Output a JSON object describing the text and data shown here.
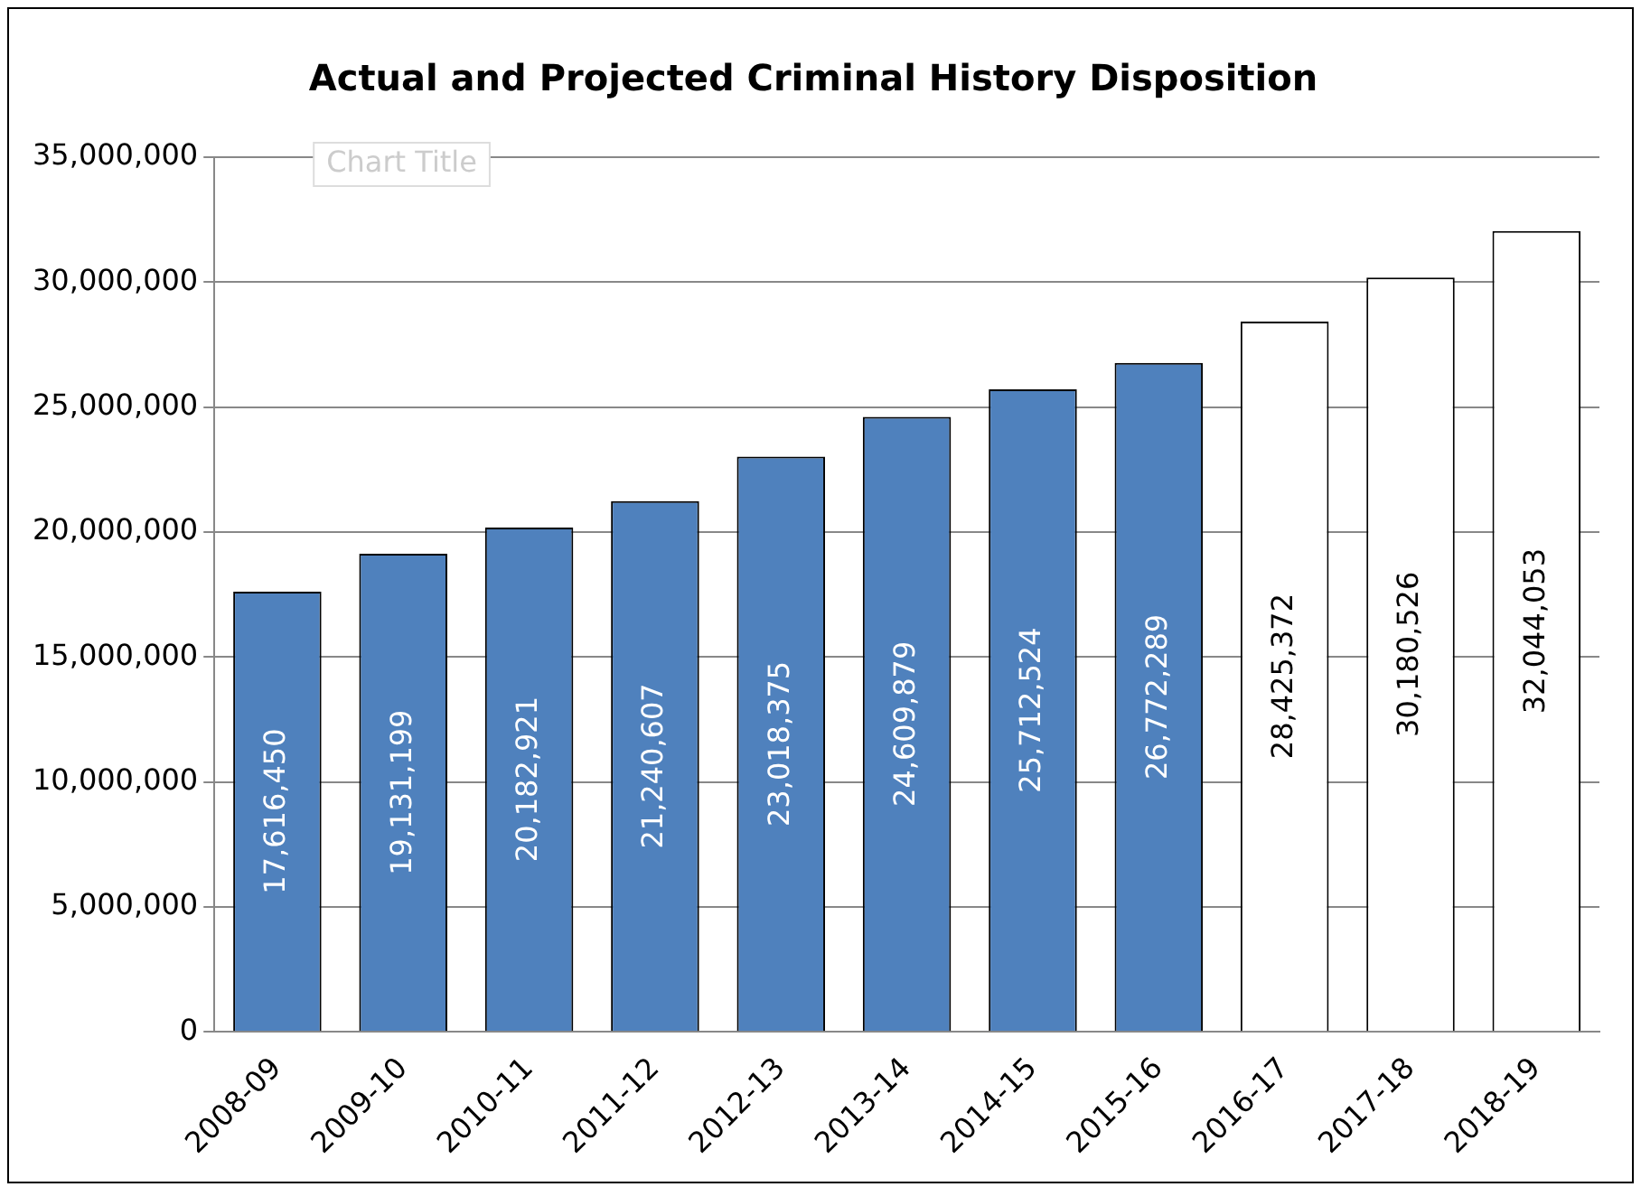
{
  "chart_data": {
    "type": "bar",
    "title": "Actual and Projected Criminal History Disposition",
    "categories": [
      "2008-09",
      "2009-10",
      "2010-11",
      "2011-12",
      "2012-13",
      "2013-14",
      "2014-15",
      "2015-16",
      "2016-17",
      "2017-18",
      "2018-19"
    ],
    "values": [
      17616450,
      19131199,
      20182921,
      21240607,
      23018375,
      24609879,
      25712524,
      26772289,
      28425372,
      30180526,
      32044053
    ],
    "colors": [
      "#4f81bd",
      "#4f81bd",
      "#4f81bd",
      "#4f81bd",
      "#4f81bd",
      "#4f81bd",
      "#4f81bd",
      "#4f81bd",
      "#ffffff",
      "#ffffff",
      "#ffffff"
    ],
    "ylim": [
      0,
      35000000
    ],
    "yticks": [
      {
        "value": 0,
        "label": "0"
      },
      {
        "value": 5000000,
        "label": "5,000,000"
      },
      {
        "value": 10000000,
        "label": "10,000,000"
      },
      {
        "value": 15000000,
        "label": "15,000,000"
      },
      {
        "value": 20000000,
        "label": "20,000,000"
      },
      {
        "value": 25000000,
        "label": "25,000,000"
      },
      {
        "value": 30000000,
        "label": "30,000,000"
      },
      {
        "value": 35000000,
        "label": "35,000,000"
      }
    ],
    "value_labels": [
      "17,616,450",
      "19,131,199",
      "20,182,921",
      "21,240,607",
      "23,018,375",
      "24,609,879",
      "25,712,524",
      "26,772,289",
      "28,425,372",
      "30,180,526",
      "32,044,053"
    ],
    "grid": "y",
    "legend": false,
    "annotations": [
      "Chart Title"
    ]
  }
}
